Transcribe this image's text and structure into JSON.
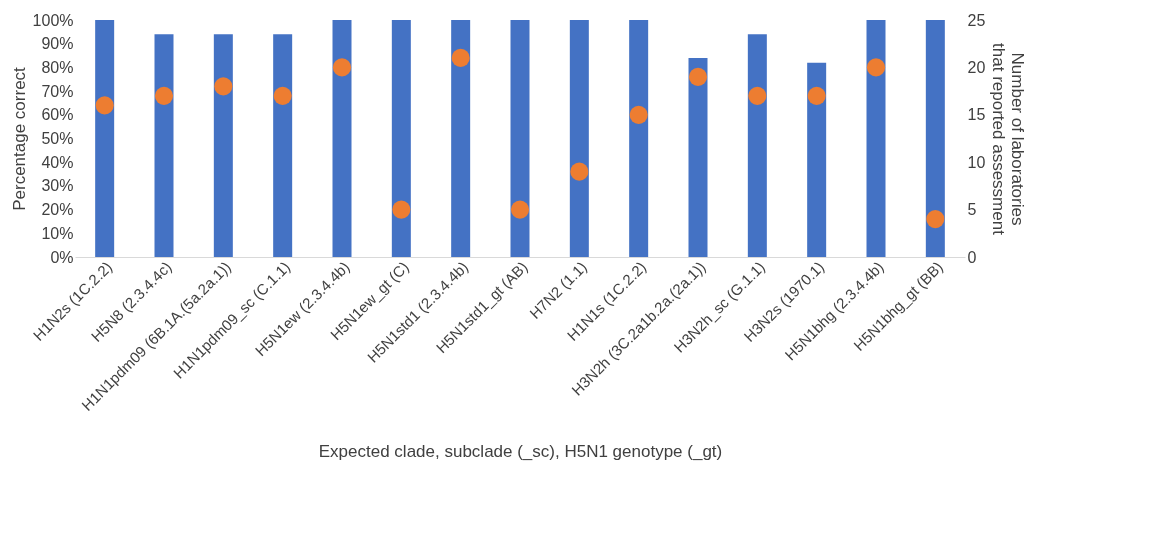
{
  "chart_data": {
    "type": "bar",
    "categories": [
      "H1N2s (1C.2.2)",
      "H5N8 (2.3.4.4c)",
      "H1N1pdm09 (6B.1A.(5a.2a.1))",
      "H1N1pdm09_sc (C.1.1)",
      "H5N1ew (2.3.4.4b)",
      "H5N1ew_gt (C)",
      "H5N1std1 (2.3.4.4b)",
      "H5N1std1_gt (AB)",
      "H7N2 (1.1)",
      "H1N1s (1C.2.2)",
      "H3N2h (3C.2a1b.2a.(2a.1))",
      "H3N2h_sc (G.1.1)",
      "H3N2s (1970.1)",
      "H5N1bhg (2.3.4.4b)",
      "H5N1bhg_gt (BB)"
    ],
    "series": [
      {
        "axis": "y",
        "color": "#4472c4",
        "values": [
          100,
          94,
          94,
          94,
          100,
          100,
          100,
          100,
          100,
          100,
          84,
          94,
          82,
          100,
          100
        ]
      },
      {
        "type": "scatter",
        "axis": "y2",
        "color": "#ed7d31",
        "marker": "circle",
        "values": [
          16,
          17,
          18,
          17,
          20,
          5,
          21,
          5,
          9,
          15,
          19,
          17,
          17,
          20,
          4
        ]
      }
    ],
    "xlabel": "Expected clade, subclade (_sc), H5N1 genotype (_gt)",
    "ylabel": "Percentage correct",
    "y2label": "Number of laboratories that reported assessment",
    "ylim": [
      0,
      100
    ],
    "yticks": [
      {
        "value": 0,
        "label": "0%"
      },
      {
        "value": 10,
        "label": "10%"
      },
      {
        "value": 20,
        "label": "20%"
      },
      {
        "value": 30,
        "label": "30%"
      },
      {
        "value": 40,
        "label": "40%"
      },
      {
        "value": 50,
        "label": "50%"
      },
      {
        "value": 60,
        "label": "60%"
      },
      {
        "value": 70,
        "label": "70%"
      },
      {
        "value": 80,
        "label": "80%"
      },
      {
        "value": 90,
        "label": "90%"
      },
      {
        "value": 100,
        "label": "100%"
      }
    ],
    "y2lim": [
      0,
      25
    ],
    "y2ticks": [
      0,
      5,
      10,
      15,
      20,
      25
    ],
    "grid": false
  }
}
